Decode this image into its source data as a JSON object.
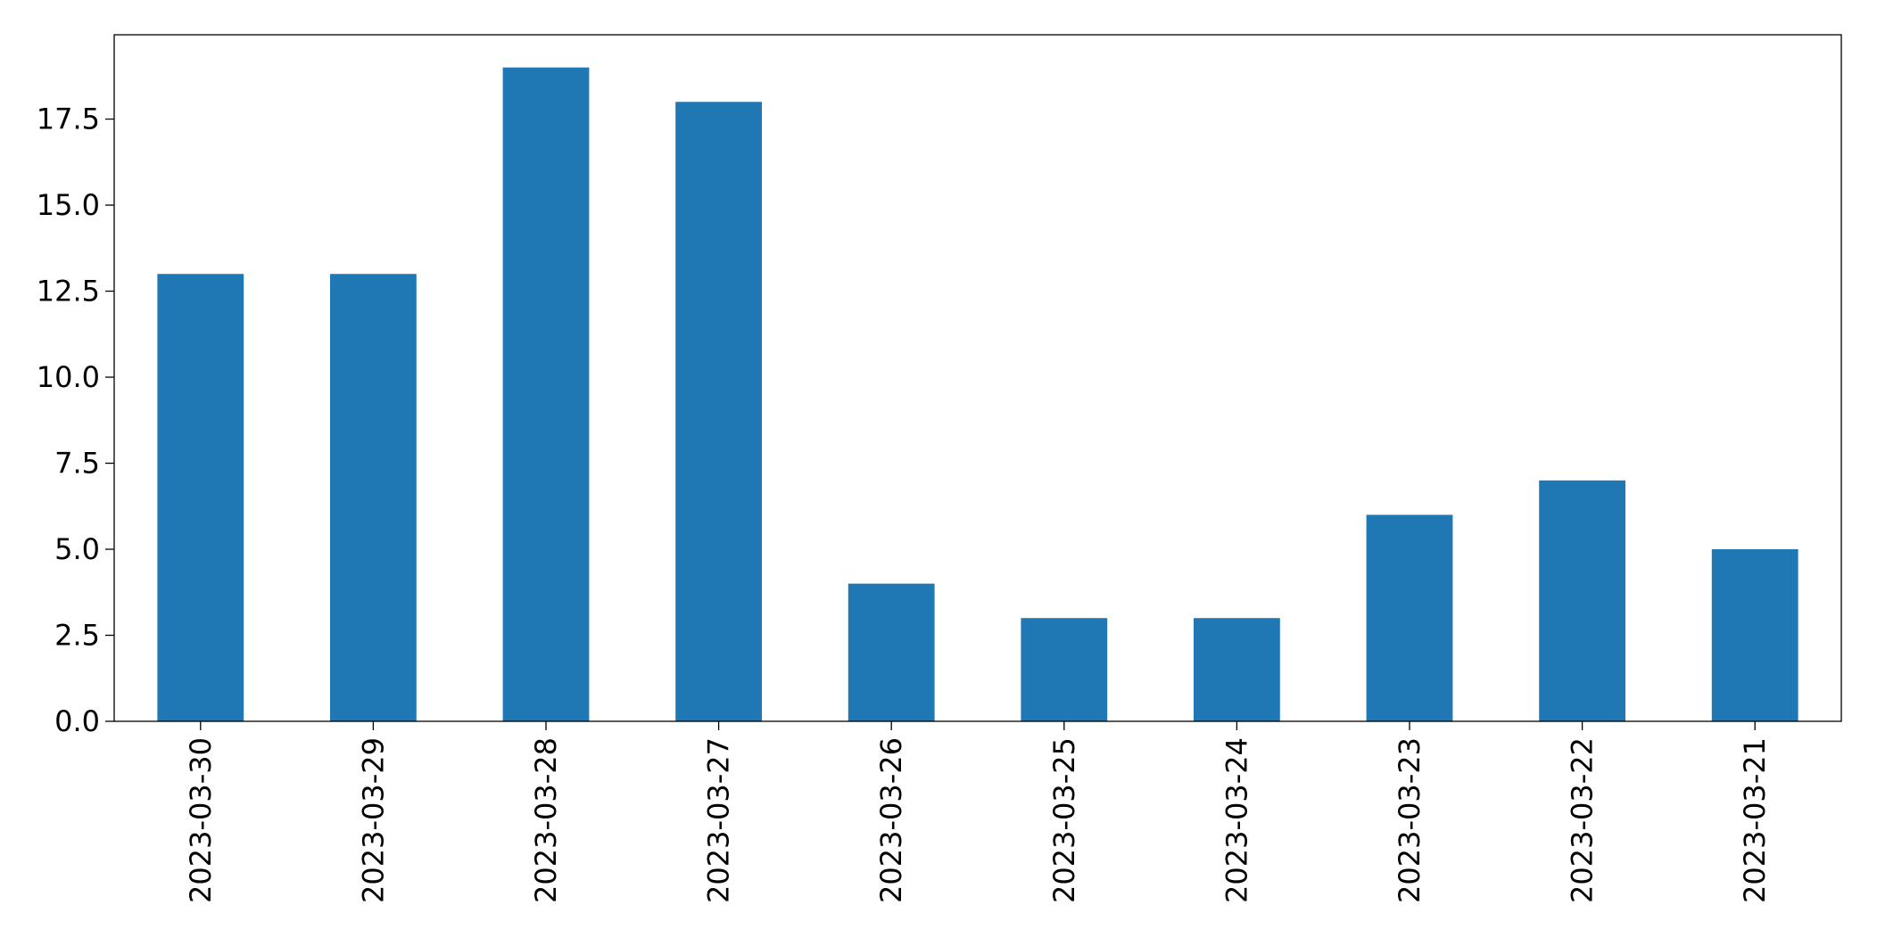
{
  "chart_data": {
    "type": "bar",
    "categories": [
      "2023-03-30",
      "2023-03-29",
      "2023-03-28",
      "2023-03-27",
      "2023-03-26",
      "2023-03-25",
      "2023-03-24",
      "2023-03-23",
      "2023-03-22",
      "2023-03-21"
    ],
    "values": [
      13,
      13,
      19,
      18,
      4,
      3,
      3,
      6,
      7,
      5
    ],
    "color": "#1f77b4",
    "ylim": [
      0,
      19.95
    ],
    "yticks": [
      {
        "value": 0,
        "label": "0.0"
      },
      2.5,
      {
        "value": 5,
        "label": "5.0"
      },
      7.5,
      {
        "value": 10,
        "label": "10.0"
      },
      12.5,
      {
        "value": 15,
        "label": "15.0"
      },
      17.5
    ],
    "grid": false
  }
}
